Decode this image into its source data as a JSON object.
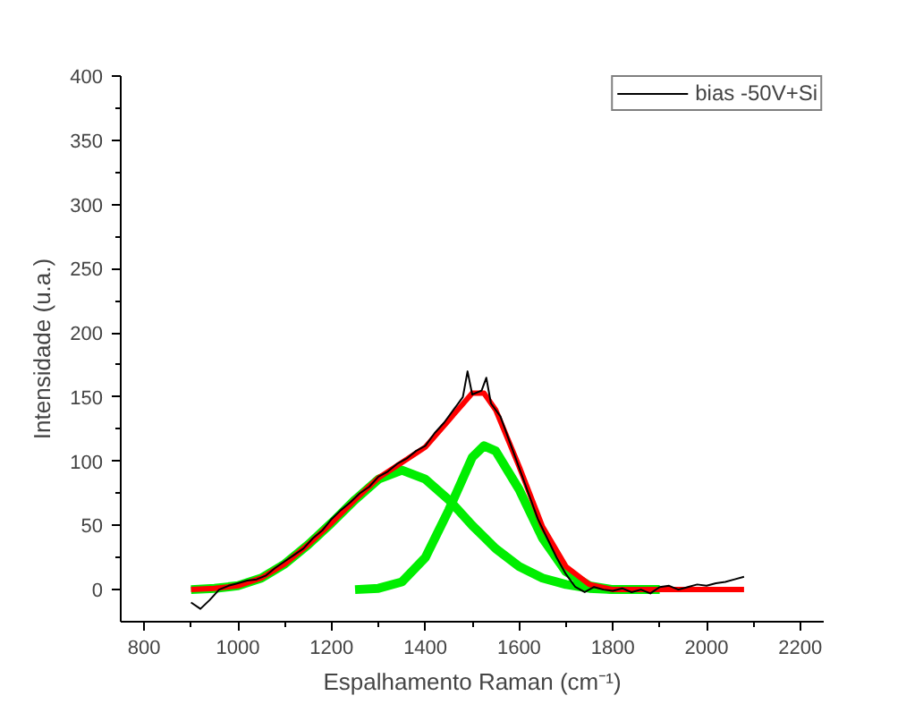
{
  "chart_data": {
    "type": "line",
    "xlabel": "Espalhamento Raman (cm⁻¹)",
    "ylabel": "Intensidade (u.a.)",
    "xlim": [
      750,
      2250
    ],
    "ylim": [
      -25,
      400
    ],
    "xticks": [
      800,
      1000,
      1200,
      1400,
      1600,
      1800,
      2000,
      2200
    ],
    "yticks": [
      0,
      50,
      100,
      150,
      200,
      250,
      300,
      350,
      400
    ],
    "grid": false,
    "legend": "top right",
    "marker": "none",
    "line_style": "solid",
    "series": [
      {
        "name": "bias -50V+Si",
        "color": "#000000",
        "x": [
          900,
          920,
          940,
          960,
          980,
          1000,
          1020,
          1040,
          1060,
          1080,
          1100,
          1120,
          1140,
          1160,
          1180,
          1200,
          1220,
          1240,
          1260,
          1280,
          1300,
          1320,
          1340,
          1360,
          1380,
          1400,
          1420,
          1440,
          1460,
          1480,
          1490,
          1500,
          1520,
          1530,
          1540,
          1560,
          1580,
          1600,
          1620,
          1640,
          1660,
          1680,
          1700,
          1720,
          1740,
          1760,
          1780,
          1800,
          1820,
          1840,
          1860,
          1880,
          1900,
          1920,
          1940,
          1960,
          1980,
          2000,
          2020,
          2040,
          2060,
          2080
        ],
        "values": [
          -10,
          -15,
          -8,
          0,
          3,
          5,
          7,
          8,
          11,
          17,
          22,
          27,
          32,
          40,
          46,
          55,
          62,
          68,
          75,
          80,
          88,
          92,
          98,
          102,
          108,
          112,
          122,
          130,
          140,
          150,
          170,
          152,
          155,
          165,
          145,
          135,
          115,
          95,
          75,
          55,
          40,
          25,
          12,
          2,
          -2,
          2,
          0,
          -1,
          1,
          -2,
          0,
          -3,
          2,
          3,
          0,
          2,
          4,
          3,
          5,
          6,
          8,
          10
        ]
      },
      {
        "color": "#00ee00",
        "x": [
          1250,
          1300,
          1350,
          1400,
          1450,
          1500,
          1525,
          1550,
          1600,
          1650,
          1700,
          1750,
          1800
        ],
        "values": [
          0,
          1,
          6,
          25,
          62,
          103,
          112,
          108,
          78,
          40,
          14,
          3,
          0
        ]
      },
      {
        "color": "#00ee00",
        "x": [
          900,
          950,
          1000,
          1050,
          1100,
          1150,
          1200,
          1250,
          1300,
          1350,
          1400,
          1450,
          1500,
          1525,
          1550,
          1600,
          1650,
          1700,
          1750,
          1800,
          1900
        ],
        "values": [
          0,
          1,
          3,
          9,
          20,
          35,
          52,
          70,
          86,
          93,
          86,
          70,
          50,
          41,
          32,
          18,
          9,
          4,
          1,
          0,
          0
        ]
      },
      {
        "color": "#ff0000",
        "x": [
          900,
          950,
          1000,
          1050,
          1100,
          1150,
          1200,
          1250,
          1300,
          1350,
          1400,
          1450,
          1500,
          1525,
          1550,
          1600,
          1650,
          1700,
          1750,
          1800,
          1900,
          2000,
          2080
        ],
        "values": [
          0,
          1,
          3,
          9,
          20,
          35,
          52,
          70,
          87,
          99,
          111,
          132,
          153,
          153,
          140,
          96,
          49,
          18,
          4,
          0,
          0,
          0,
          0
        ]
      }
    ]
  }
}
